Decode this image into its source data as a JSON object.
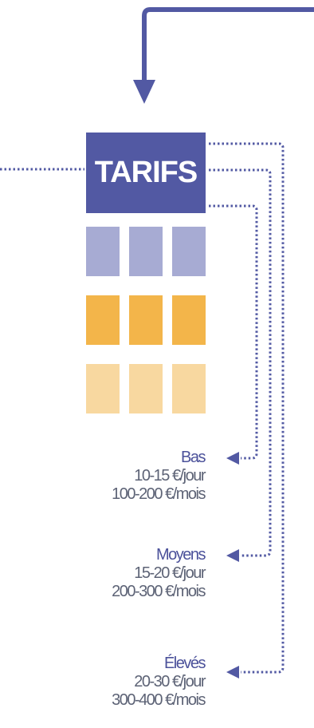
{
  "title": "TARIFS",
  "colors": {
    "primary": "#5259a3",
    "tier_low": "#a7abd3",
    "tier_mid": "#f3b54a",
    "tier_high": "#f8d8a0",
    "text_name": "#4b519a",
    "text_value": "#5d6376"
  },
  "tiers": [
    {
      "name": "Bas",
      "per_day": "10-15 €/jour",
      "per_month": "100-200 €/mois"
    },
    {
      "name": "Moyens",
      "per_day": "15-20 €/jour",
      "per_month": "200-300 €/mois"
    },
    {
      "name": "Élevés",
      "per_day": "20-30 €/jour",
      "per_month": "300-400 €/mois"
    }
  ]
}
